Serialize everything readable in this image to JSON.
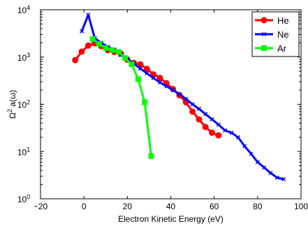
{
  "chart_data": {
    "type": "line",
    "xlabel": "Electron Kinetic Energy (eV)",
    "ylabel_base": "Ω",
    "ylabel_exp": "2",
    "ylabel_rest": " a(ω)",
    "xlim": [
      -20,
      100
    ],
    "ylim": [
      1,
      10000
    ],
    "yscale": "log",
    "x_ticks": [
      -20,
      0,
      20,
      40,
      60,
      80,
      100
    ],
    "x_tick_labels": [
      "−20",
      "0",
      "20",
      "40",
      "60",
      "80",
      "100"
    ],
    "y_ticks": [
      1,
      10,
      100,
      1000,
      10000
    ],
    "y_tick_labels": [
      {
        "base": "10",
        "exp": "0"
      },
      {
        "base": "10",
        "exp": "1"
      },
      {
        "base": "10",
        "exp": "2"
      },
      {
        "base": "10",
        "exp": "3"
      },
      {
        "base": "10",
        "exp": "4"
      }
    ],
    "grid": false,
    "legend_position": "top-right",
    "series": [
      {
        "name": "He",
        "color": "#ff0000",
        "marker": "circle",
        "x": [
          -4,
          -1,
          2,
          5,
          8,
          11,
          14,
          17,
          20,
          23,
          26,
          29,
          32,
          35,
          38,
          41,
          44,
          47,
          50,
          53,
          56,
          59,
          62
        ],
        "y": [
          860,
          1300,
          1750,
          1950,
          1700,
          1400,
          1280,
          1180,
          880,
          750,
          700,
          560,
          430,
          360,
          280,
          210,
          155,
          110,
          70,
          48,
          33,
          25,
          22
        ]
      },
      {
        "name": "Ne",
        "color": "#0000ff",
        "marker": "x",
        "x": [
          -1,
          2,
          5,
          8,
          11,
          14,
          17,
          20,
          23,
          26,
          29,
          32,
          35,
          38,
          41,
          44,
          47,
          50,
          53,
          56,
          59,
          62,
          65,
          68,
          71,
          74,
          77,
          80,
          83,
          86,
          89,
          92
        ],
        "y": [
          3500,
          7800,
          2500,
          2000,
          1650,
          1430,
          1100,
          920,
          720,
          570,
          450,
          360,
          290,
          240,
          200,
          165,
          130,
          100,
          80,
          62,
          48,
          37,
          28,
          25,
          20,
          13,
          9,
          6,
          4.6,
          3.5,
          2.8,
          2.6
        ]
      },
      {
        "name": "Ar",
        "color": "#00ff00",
        "marker": "square",
        "x": [
          4,
          7,
          10,
          13,
          16,
          19,
          22,
          25,
          28,
          31
        ],
        "y": [
          2400,
          1900,
          1550,
          1400,
          1280,
          950,
          700,
          340,
          110,
          8
        ]
      }
    ]
  }
}
